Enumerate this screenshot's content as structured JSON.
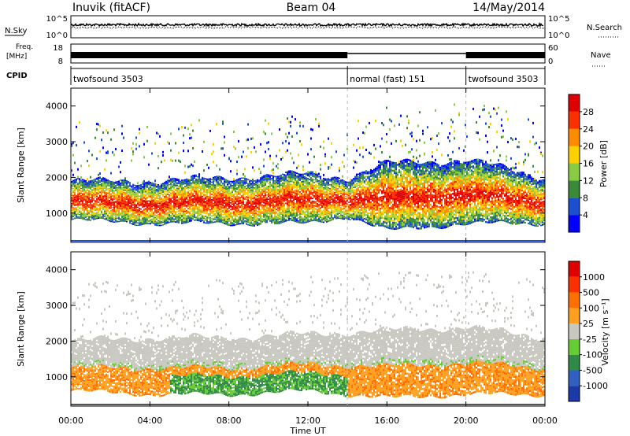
{
  "header": {
    "station": "Inuvik (fitACF)",
    "beam": "Beam 04",
    "date": "14/May/2014"
  },
  "top_panels": {
    "nsky_label": "N.Sky",
    "nsky_ticks": [
      "10^5",
      "10^0"
    ],
    "nsearch_label": "N.Search",
    "nsearch_ticks": [
      "10^5",
      "10^0"
    ],
    "freq_label": "Freq.",
    "freq_unit": "[MHz]",
    "freq_ticks": [
      "18",
      "8"
    ],
    "nave_label": "Nave",
    "nave_ticks": [
      "60",
      "0"
    ],
    "cpid_label": "CPID",
    "cpid_segments": [
      {
        "label": "twofsound 3503",
        "start_hour": 0,
        "end_hour": 14
      },
      {
        "label": "normal (fast) 151",
        "start_hour": 14,
        "end_hour": 20
      },
      {
        "label": "twofsound 3503",
        "start_hour": 20,
        "end_hour": 24
      }
    ]
  },
  "chart_data": [
    {
      "type": "heatmap",
      "name": "power",
      "xlabel": "",
      "ylabel": "Slant Range [km]",
      "xlim": [
        0,
        24
      ],
      "ylim": [
        180,
        4500
      ],
      "yticks": [
        "1000",
        "2000",
        "3000",
        "4000"
      ],
      "colorbar_label": "Power [dB]",
      "colorbar_ticks": [
        "4",
        "8",
        "12",
        "16",
        "20",
        "24",
        "28"
      ],
      "colorbar_range": [
        0,
        30
      ],
      "colors": [
        "#0000ff",
        "#1a4fd0",
        "#3a8a3a",
        "#88cc44",
        "#ffd000",
        "#ff8c00",
        "#ff3000",
        "#e00000"
      ],
      "bands": [
        {
          "hour": 0,
          "low": 800,
          "high": 1900
        },
        {
          "hour": 4,
          "low": 700,
          "high": 1900
        },
        {
          "hour": 8,
          "low": 700,
          "high": 2000
        },
        {
          "hour": 12,
          "low": 700,
          "high": 2100
        },
        {
          "hour": 14,
          "low": 900,
          "high": 2000
        },
        {
          "hour": 16,
          "low": 500,
          "high": 2400
        },
        {
          "hour": 20,
          "low": 700,
          "high": 2500
        },
        {
          "hour": 24,
          "low": 700,
          "high": 2000
        }
      ]
    },
    {
      "type": "heatmap",
      "name": "velocity",
      "xlabel": "Time UT",
      "ylabel": "Slant Range [km]",
      "xlim": [
        0,
        24
      ],
      "ylim": [
        180,
        4500
      ],
      "xticks": [
        "00:00",
        "04:00",
        "08:00",
        "12:00",
        "16:00",
        "20:00",
        "00:00"
      ],
      "yticks": [
        "1000",
        "2000",
        "3000",
        "4000"
      ],
      "colorbar_label": "Velocity [m s⁻¹]",
      "colorbar_ticks": [
        "1000",
        "500",
        "100",
        "25",
        "-25",
        "-100",
        "-500",
        "-1000"
      ],
      "colors": [
        "#1a3aa8",
        "#3060c0",
        "#2f8a46",
        "#66cc33",
        "#c8c8c0",
        "#ffa020",
        "#ff7000",
        "#ff3000",
        "#e00000"
      ],
      "bands": [
        {
          "hour": 0,
          "low": 600,
          "high": 2000
        },
        {
          "hour": 4,
          "low": 500,
          "high": 2100
        },
        {
          "hour": 8,
          "low": 500,
          "high": 2100
        },
        {
          "hour": 12,
          "low": 600,
          "high": 2200
        },
        {
          "hour": 16,
          "low": 400,
          "high": 2300
        },
        {
          "hour": 20,
          "low": 500,
          "high": 2400
        },
        {
          "hour": 24,
          "low": 500,
          "high": 2100
        }
      ]
    }
  ]
}
